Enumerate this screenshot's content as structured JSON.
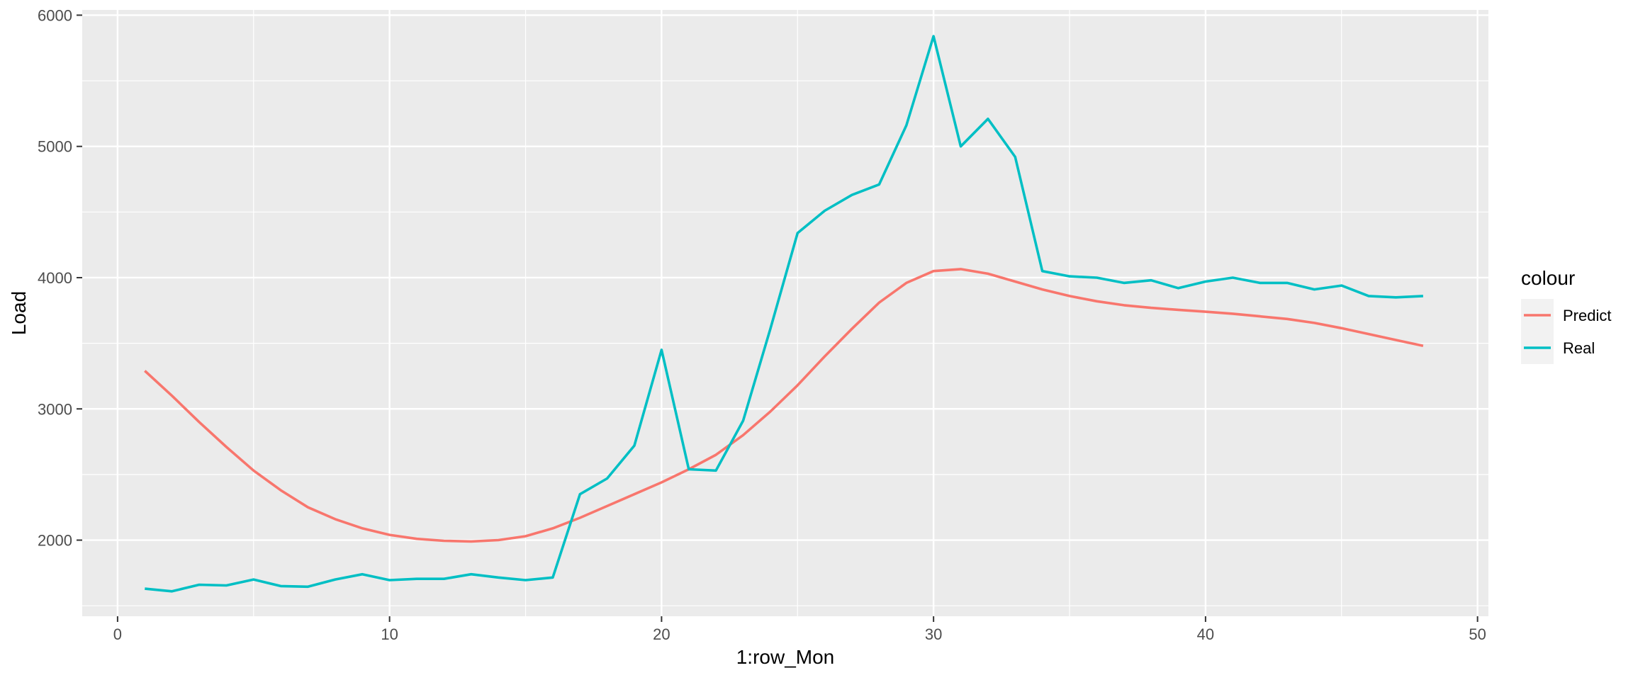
{
  "chart_data": {
    "type": "line",
    "xlabel": "1:row_Mon",
    "ylabel": "Load",
    "xlim": [
      -1.3,
      50.4
    ],
    "ylim": [
      1420,
      6040
    ],
    "x_ticks": [
      0,
      10,
      20,
      30,
      40,
      50
    ],
    "y_ticks": [
      2000,
      3000,
      4000,
      5000,
      6000
    ],
    "grid": true,
    "legend": {
      "title": "colour",
      "position": "right"
    },
    "x": [
      1,
      2,
      3,
      4,
      5,
      6,
      7,
      8,
      9,
      10,
      11,
      12,
      13,
      14,
      15,
      16,
      17,
      18,
      19,
      20,
      21,
      22,
      23,
      24,
      25,
      26,
      27,
      28,
      29,
      30,
      31,
      32,
      33,
      34,
      35,
      36,
      37,
      38,
      39,
      40,
      41,
      42,
      43,
      44,
      45,
      46,
      47,
      48
    ],
    "series": [
      {
        "name": "Predict",
        "color": "#F8766D",
        "values": [
          3290,
          3100,
          2900,
          2710,
          2530,
          2380,
          2250,
          2160,
          2090,
          2040,
          2010,
          1995,
          1990,
          2000,
          2030,
          2090,
          2170,
          2260,
          2350,
          2440,
          2540,
          2650,
          2800,
          2980,
          3180,
          3400,
          3610,
          3810,
          3960,
          4050,
          4065,
          4030,
          3970,
          3910,
          3860,
          3820,
          3790,
          3770,
          3755,
          3740,
          3725,
          3705,
          3685,
          3655,
          3615,
          3570,
          3525,
          3480
        ]
      },
      {
        "name": "Real",
        "color": "#00BFC4",
        "values": [
          1630,
          1610,
          1660,
          1655,
          1700,
          1650,
          1645,
          1700,
          1740,
          1695,
          1705,
          1705,
          1740,
          1715,
          1695,
          1715,
          2350,
          2470,
          2720,
          3450,
          2540,
          2530,
          2910,
          3610,
          4340,
          4510,
          4630,
          4710,
          5160,
          5840,
          5000,
          5210,
          4920,
          4050,
          4010,
          4000,
          3960,
          3980,
          3920,
          3970,
          4000,
          3960,
          3960,
          3910,
          3940,
          3860,
          3850,
          3860
        ]
      }
    ]
  }
}
